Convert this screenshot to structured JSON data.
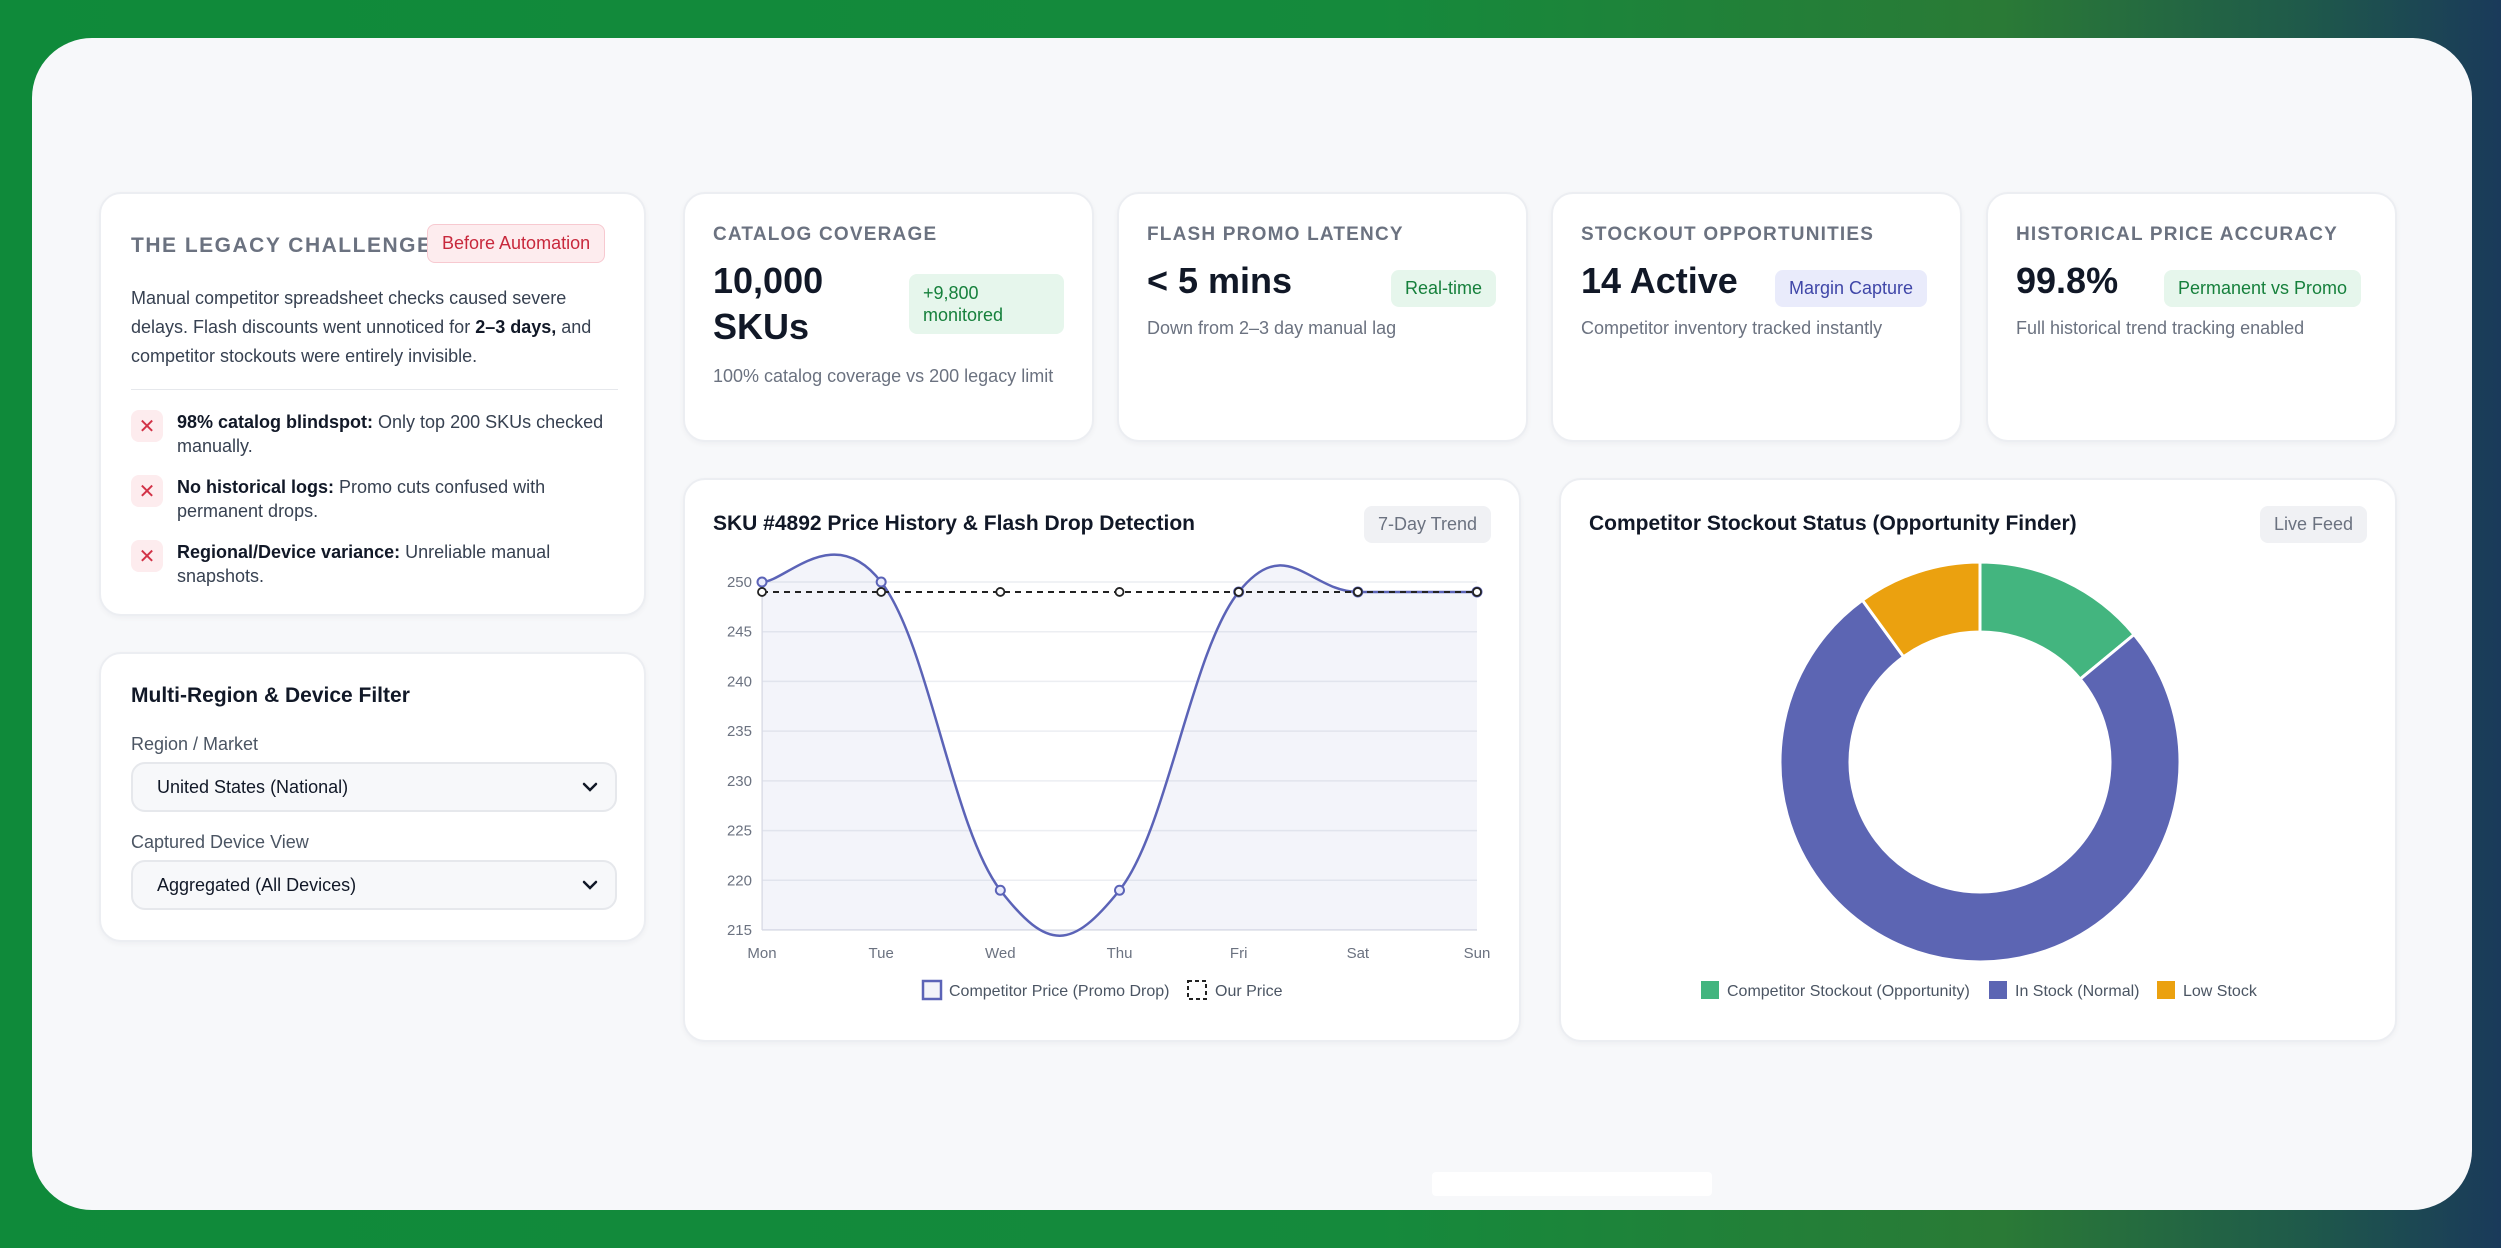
{
  "legacy": {
    "title": "THE LEGACY CHALLENGE",
    "badge": "Before Automation",
    "desc_part1": "Manual competitor spreadsheet checks caused severe delays. Flash discounts went unnoticed for ",
    "desc_bold": "2–3 days,",
    "desc_part2": " and competitor stockouts were entirely invisible.",
    "issues": [
      {
        "bold": "98% catalog blindspot:",
        "text": " Only top 200 SKUs checked manually."
      },
      {
        "bold": "No historical logs:",
        "text": " Promo cuts confused with permanent drops."
      },
      {
        "bold": "Regional/Device variance:",
        "text": " Unreliable manual snapshots."
      }
    ]
  },
  "filter": {
    "title": "Multi-Region & Device Filter",
    "region_label": "Region / Market",
    "region_value": "United States (National)",
    "device_label": "Captured Device View",
    "device_value": "Aggregated (All Devices)"
  },
  "kpis": [
    {
      "label": "CATALOG COVERAGE",
      "value": "10,000 SKUs",
      "badge": "+9,800 monitored",
      "sub": "100% catalog coverage vs 200 legacy limit",
      "badge_color": "#16803c"
    },
    {
      "label": "FLASH PROMO LATENCY",
      "value": "< 5 mins",
      "badge": "Real-time",
      "sub": "Down from 2–3 day manual lag",
      "badge_color": "#16803c"
    },
    {
      "label": "STOCKOUT OPPORTUNITIES",
      "value": "14 Active",
      "badge": "Margin Capture",
      "sub": "Competitor inventory tracked instantly",
      "badge_color": "#3f46a8"
    },
    {
      "label": "HISTORICAL PRICE ACCURACY",
      "value": "99.8%",
      "badge": "Permanent vs Promo",
      "sub": "Full historical trend tracking enabled",
      "badge_color": "#16803c"
    }
  ],
  "price_chart": {
    "title": "SKU #4892 Price History & Flash Drop Detection",
    "badge": "7-Day Trend"
  },
  "stock_chart": {
    "title": "Competitor Stockout Status (Opportunity Finder)",
    "badge": "Live Feed"
  },
  "chart_data": [
    {
      "type": "line",
      "categories": [
        "Mon",
        "Tue",
        "Wed",
        "Thu",
        "Fri",
        "Sat",
        "Sun"
      ],
      "ylim": [
        215,
        250
      ],
      "yticks": [
        215,
        220,
        225,
        230,
        235,
        240,
        245,
        250
      ],
      "series": [
        {
          "name": "Competitor Price (Promo Drop)",
          "values": [
            250,
            250,
            219,
            219,
            249,
            249,
            249
          ],
          "color": "#5b63b7"
        },
        {
          "name": "Our Price",
          "values": [
            249,
            249,
            249,
            249,
            249,
            249,
            249
          ],
          "color": "#222222",
          "dashed": true
        }
      ],
      "grid": true,
      "legend": "bottom"
    },
    {
      "type": "pie",
      "donut": true,
      "labels": [
        "Competitor Stockout (Opportunity)",
        "In Stock (Normal)",
        "Low Stock"
      ],
      "values": [
        14,
        76,
        10
      ],
      "colors": [
        "#43b57f",
        "#5c65b3",
        "#eba10f"
      ],
      "legend": "bottom"
    }
  ]
}
